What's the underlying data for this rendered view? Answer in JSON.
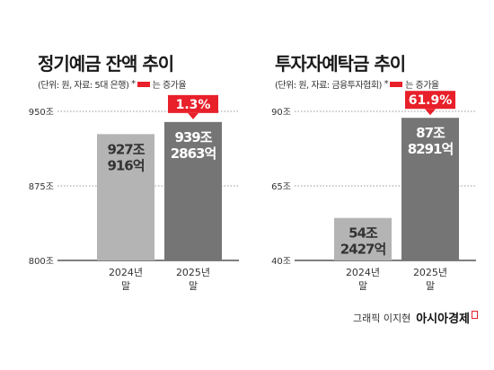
{
  "colors": {
    "bar_prev": "#b4b4b4",
    "bar_curr": "#757575",
    "highlight": "#e8202a",
    "grid": "#333333"
  },
  "credit": {
    "text": "그래픽 이지현",
    "brand": "아시아경제"
  },
  "chart_data": [
    {
      "type": "bar",
      "title": "정기예금 잔액 추이",
      "subtitle": "(단위: 원, 자료: 5대 은행)",
      "legend_note": "는 증가율",
      "categories": [
        "2024년\n말",
        "2025년\n말"
      ],
      "values_in_jo": [
        927.0916,
        939.2863
      ],
      "value_labels": [
        "927조\n916억",
        "939조\n2863억"
      ],
      "growth_label": "1.3%",
      "y_ticks": [
        "950조",
        "875조",
        "800조"
      ],
      "ylim": [
        800,
        950
      ],
      "tick_values": [
        950,
        875,
        800
      ]
    },
    {
      "type": "bar",
      "title": "투자자예탁금 추이",
      "subtitle": "(단위: 원, 자료: 금융투자협회)",
      "legend_note": "는 증가율",
      "categories": [
        "2024년\n말",
        "2025년\n말"
      ],
      "values_in_jo": [
        54.2427,
        87.8291
      ],
      "value_labels": [
        "54조\n2427억",
        "87조\n8291억"
      ],
      "growth_label": "61.9%",
      "y_ticks": [
        "90조",
        "65조",
        "40조"
      ],
      "ylim": [
        40,
        90
      ],
      "tick_values": [
        90,
        65,
        40
      ]
    }
  ]
}
